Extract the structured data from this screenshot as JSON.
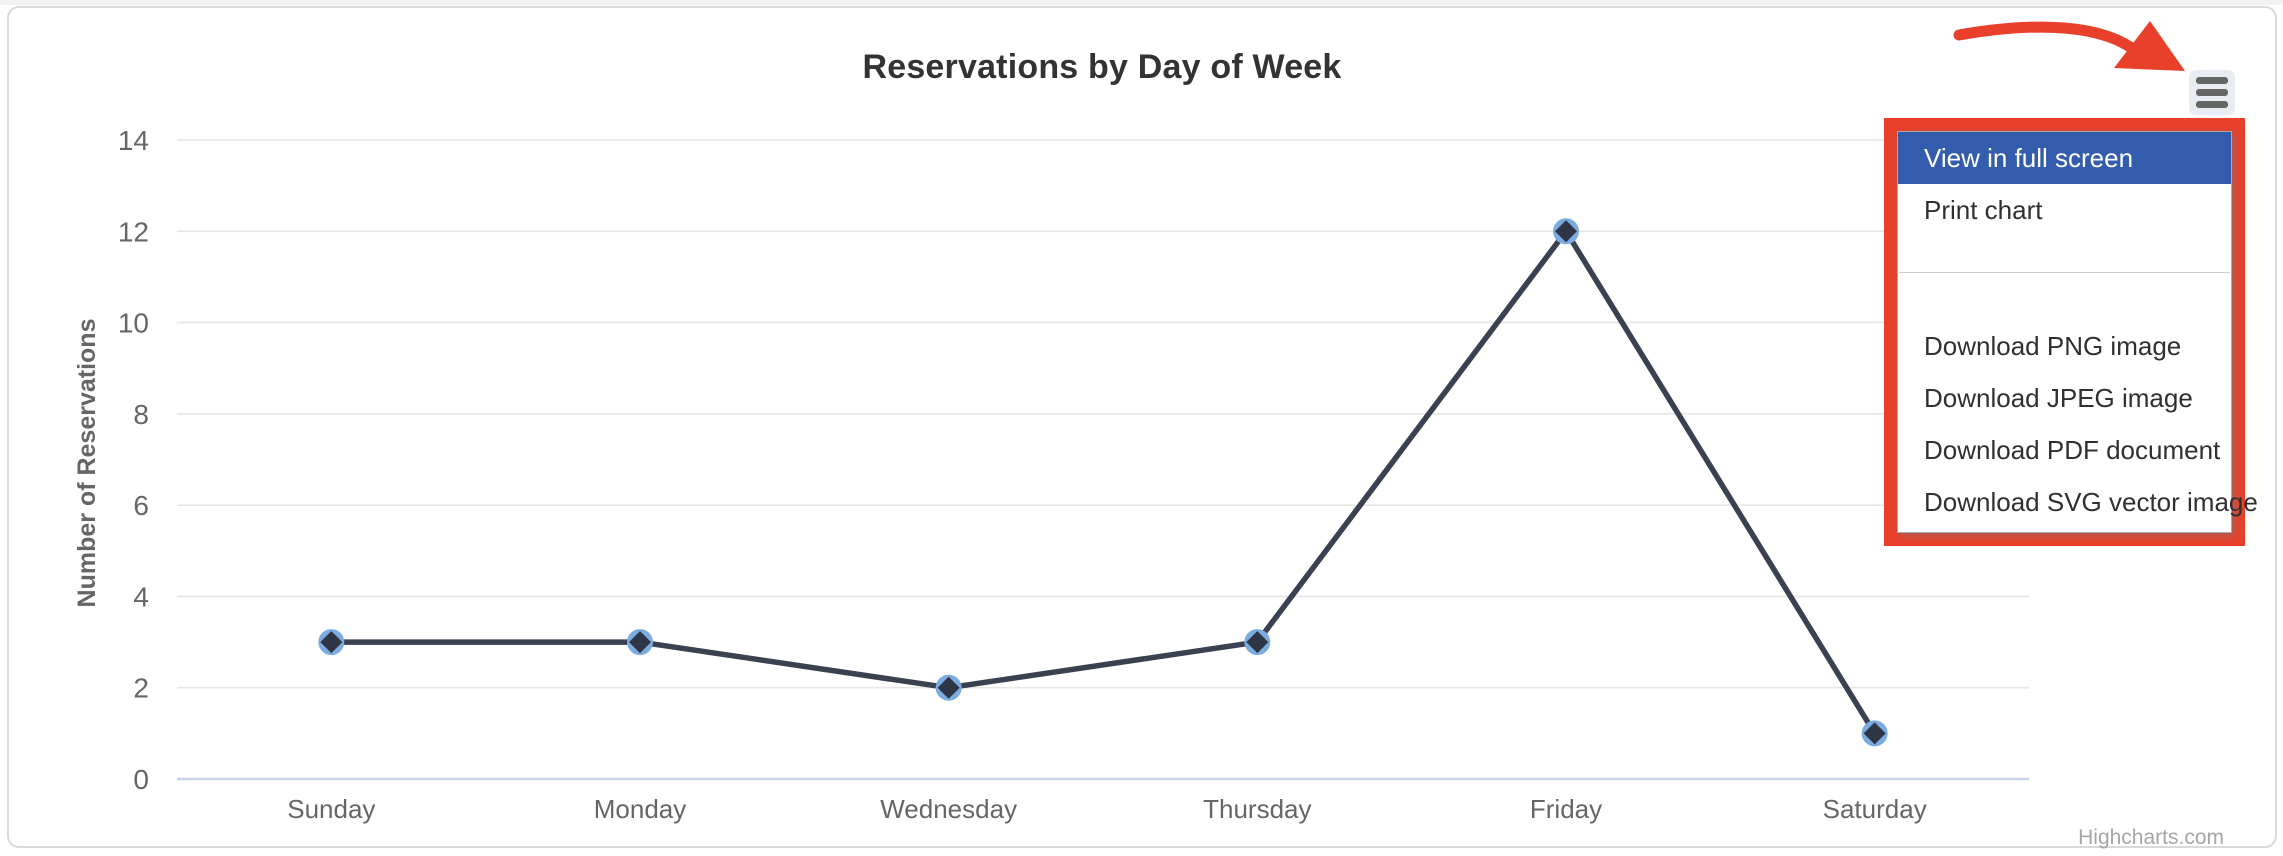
{
  "chart_data": {
    "type": "line",
    "title": "Reservations by Day of Week",
    "xlabel": "",
    "ylabel": "Number of Reservations",
    "categories": [
      "Sunday",
      "Monday",
      "Wednesday",
      "Thursday",
      "Friday",
      "Saturday"
    ],
    "series": [
      {
        "name": "Reservations",
        "values": [
          3,
          3,
          2,
          3,
          12,
          1
        ]
      }
    ],
    "ylim": [
      0,
      14
    ],
    "ytick_step": 2,
    "yticks": [
      0,
      2,
      4,
      6,
      8,
      10,
      12,
      14
    ],
    "grid": true,
    "legend": false,
    "credit": "Highcharts.com"
  },
  "export_menu": {
    "button_icon": "hamburger-icon",
    "items": [
      {
        "label": "View in full screen",
        "highlighted": true
      },
      {
        "label": "Print chart",
        "highlighted": false
      },
      {
        "separator": true
      },
      {
        "label": "Download PNG image",
        "highlighted": false
      },
      {
        "label": "Download JPEG image",
        "highlighted": false
      },
      {
        "label": "Download PDF document",
        "highlighted": false
      },
      {
        "label": "Download SVG vector image",
        "highlighted": false
      }
    ]
  },
  "annotations": {
    "arrow_icon": "curved-arrow-icon",
    "highlight_color": "#e8402b"
  },
  "colors": {
    "series_line": "#3a4150",
    "marker_fill": "#2e3545",
    "marker_halo": "#7cabdf",
    "gridline": "#e6e6e6",
    "axis_line": "#c9d4e8",
    "tick_label": "#666666",
    "axis_title": "#666666",
    "chart_title": "#333333",
    "menu_highlight": "#335cad",
    "menu_text": "#303030",
    "credit_text": "#a6a6a6"
  }
}
